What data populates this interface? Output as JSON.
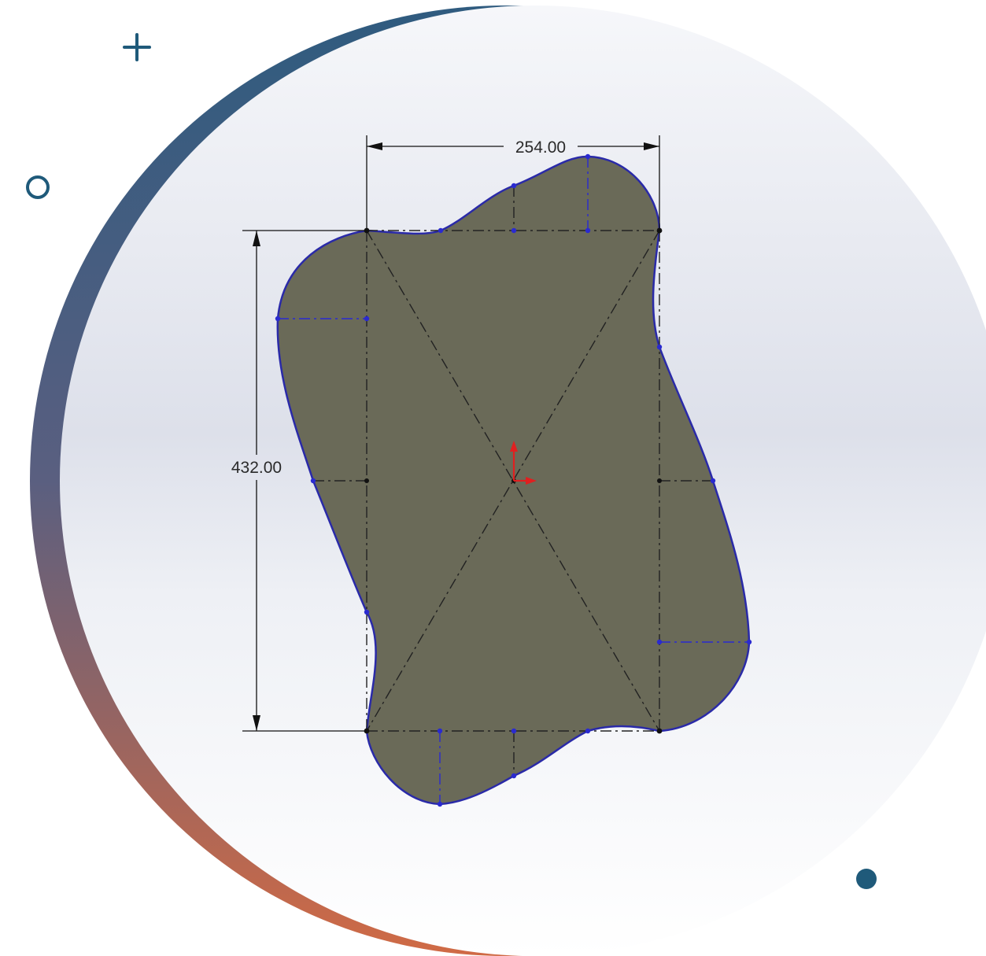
{
  "drawing": {
    "width_dimension": "254.00",
    "height_dimension": "432.00"
  },
  "decorations": {
    "plus_icon": "plus-icon",
    "ring_icon": "circle-outline-icon",
    "dot_icon": "filled-dot-icon",
    "accent_color": "#1f5a7a"
  },
  "colors": {
    "shape_fill": "#6a6a58",
    "shape_outline": "#2a2aa8",
    "arc_top": "#2f5b7f",
    "arc_bottom": "#d06a45",
    "origin_arrow": "#e02020"
  }
}
